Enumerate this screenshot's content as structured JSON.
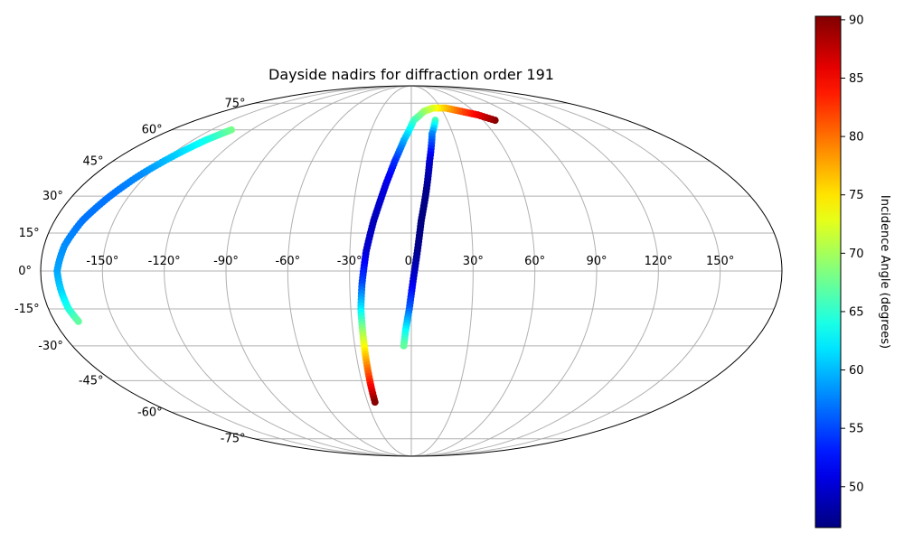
{
  "chart_data": {
    "type": "scatter",
    "projection": "mollweide",
    "title": "Dayside nadirs for diffraction order 191",
    "grid": true,
    "x_ticks": [
      "-150°",
      "-120°",
      "-90°",
      "-60°",
      "-30°",
      "0°",
      "30°",
      "60°",
      "90°",
      "120°",
      "150°"
    ],
    "y_ticks": [
      "-75°",
      "-60°",
      "-45°",
      "-30°",
      "-15°",
      "0°",
      "15°",
      "30°",
      "45°",
      "60°",
      "75°"
    ],
    "colorbar": {
      "label": "Incidence Angle (degrees)",
      "colormap": "jet",
      "min": 46.5,
      "max": 90.3,
      "ticks": [
        "50",
        "55",
        "60",
        "65",
        "70",
        "75",
        "80",
        "85",
        "90"
      ]
    },
    "series": [
      {
        "points": [
          {
            "lon": -135,
            "lat": 60,
            "inc": 68
          },
          {
            "lon": -141,
            "lat": 55,
            "inc": 64
          },
          {
            "lon": -147,
            "lat": 48,
            "inc": 61
          },
          {
            "lon": -154,
            "lat": 39,
            "inc": 58
          },
          {
            "lon": -160,
            "lat": 30,
            "inc": 57
          },
          {
            "lon": -166,
            "lat": 20,
            "inc": 57
          },
          {
            "lon": -170,
            "lat": 10,
            "inc": 58
          },
          {
            "lon": -172,
            "lat": 0,
            "inc": 59
          },
          {
            "lon": -171,
            "lat": -8,
            "inc": 61
          },
          {
            "lon": -170,
            "lat": -15,
            "inc": 64
          },
          {
            "lon": -168,
            "lat": -20,
            "inc": 67
          }
        ]
      },
      {
        "points": [
          {
            "lon": 70,
            "lat": 65,
            "inc": 90
          },
          {
            "lon": 60,
            "lat": 68,
            "inc": 86
          },
          {
            "lon": 48,
            "lat": 70,
            "inc": 82
          },
          {
            "lon": 35,
            "lat": 72,
            "inc": 77
          },
          {
            "lon": 22,
            "lat": 72,
            "inc": 73
          },
          {
            "lon": 12,
            "lat": 70,
            "inc": 70
          },
          {
            "lon": 2,
            "lat": 65,
            "inc": 66
          },
          {
            "lon": -5,
            "lat": 55,
            "inc": 60
          },
          {
            "lon": -10,
            "lat": 45,
            "inc": 54
          },
          {
            "lon": -14,
            "lat": 35,
            "inc": 51
          },
          {
            "lon": -19,
            "lat": 20,
            "inc": 49
          },
          {
            "lon": -22,
            "lat": 8,
            "inc": 50
          },
          {
            "lon": -24,
            "lat": -5,
            "inc": 55
          },
          {
            "lon": -25,
            "lat": -15,
            "inc": 62
          },
          {
            "lon": -25,
            "lat": -25,
            "inc": 70
          },
          {
            "lon": -25,
            "lat": -37,
            "inc": 78
          },
          {
            "lon": -25,
            "lat": -48,
            "inc": 85
          },
          {
            "lon": -25,
            "lat": -55,
            "inc": 90
          }
        ]
      },
      {
        "points": [
          {
            "lon": 20,
            "lat": 65,
            "inc": 66
          },
          {
            "lon": 15,
            "lat": 58,
            "inc": 58
          },
          {
            "lon": 11,
            "lat": 45,
            "inc": 50
          },
          {
            "lon": 8,
            "lat": 32,
            "inc": 47
          },
          {
            "lon": 5,
            "lat": 20,
            "inc": 46.5
          },
          {
            "lon": 3,
            "lat": 8,
            "inc": 47
          },
          {
            "lon": 1,
            "lat": -3,
            "inc": 50
          },
          {
            "lon": -1,
            "lat": -15,
            "inc": 56
          },
          {
            "lon": -3,
            "lat": -24,
            "inc": 63
          },
          {
            "lon": -4,
            "lat": -30,
            "inc": 67
          }
        ]
      }
    ]
  }
}
